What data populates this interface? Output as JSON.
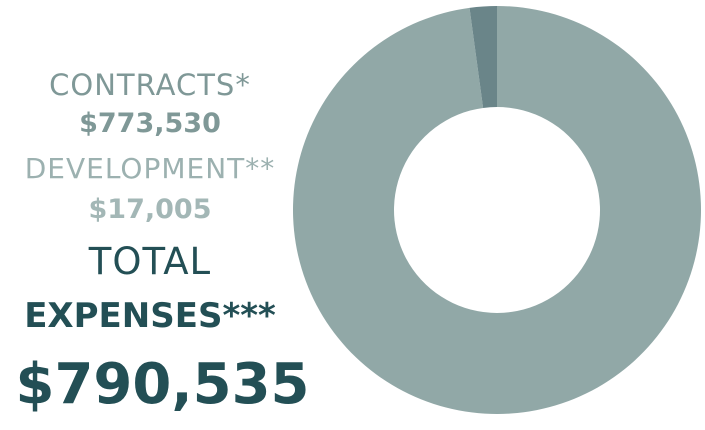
{
  "legend": {
    "contracts_label": "CONTRACTS*",
    "contracts_value": "$773,530",
    "development_label": "DEVELOPMENT**",
    "development_value": "$17,005",
    "total_label": "TOTAL",
    "total_sub": "EXPENSES***",
    "total_value": "$790,535"
  },
  "colors": {
    "contracts": "#91a8a7",
    "development": "#6a8589",
    "contracts_label": "#7f9897",
    "contracts_value": "#7f9897",
    "development_label": "#9cb1b0",
    "development_value": "#a3b7b6",
    "total": "#234f55"
  },
  "chart_data": {
    "type": "pie",
    "donut": true,
    "categories": [
      "CONTRACTS*",
      "DEVELOPMENT**"
    ],
    "values": [
      773530,
      17005
    ],
    "total": 790535,
    "title": ""
  }
}
